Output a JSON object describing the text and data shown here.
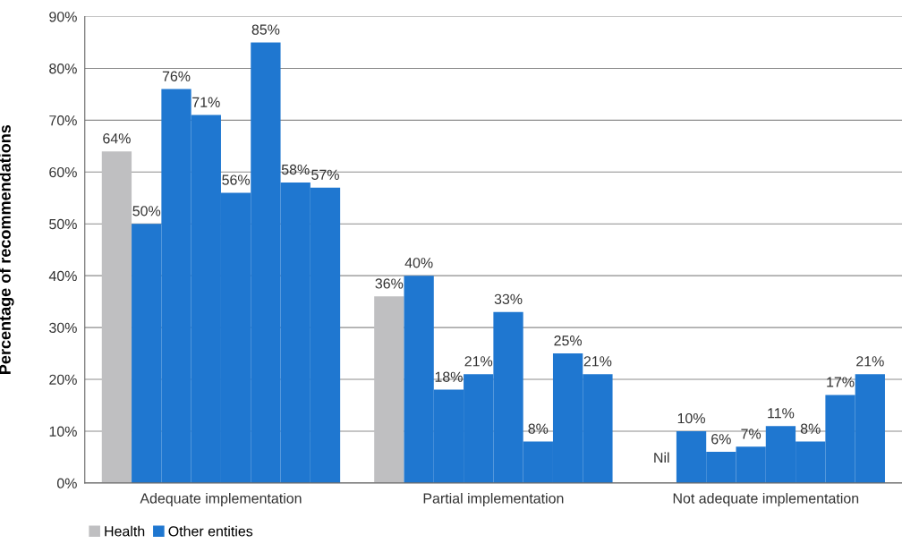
{
  "chart_data": {
    "type": "bar",
    "ylabel": "Percentage of recommendations",
    "categories": [
      "Adequate implementation",
      "Partial implementation",
      "Not adequate implementation"
    ],
    "series": [
      {
        "name": "Health",
        "color": "#bfbfc1",
        "values": [
          64,
          36,
          null
        ],
        "value_labels": [
          "64%",
          "36%",
          null
        ]
      },
      {
        "name": "Other entities",
        "color": "#1f77d0",
        "values": [
          50,
          40,
          10
        ],
        "value_labels": [
          "50%",
          "40%",
          "10%"
        ]
      },
      {
        "color": "#1f77d0",
        "values": [
          76,
          18,
          6
        ],
        "value_labels": [
          "76%",
          "18%",
          "6%"
        ]
      },
      {
        "color": "#1f77d0",
        "values": [
          71,
          21,
          7
        ],
        "value_labels": [
          "71%",
          "21%",
          "7%"
        ]
      },
      {
        "color": "#1f77d0",
        "values": [
          56,
          33,
          11
        ],
        "value_labels": [
          "56%",
          "33%",
          "11%"
        ]
      },
      {
        "color": "#1f77d0",
        "values": [
          85,
          8,
          8
        ],
        "value_labels": [
          "85%",
          "8%",
          "8%"
        ]
      },
      {
        "color": "#1f77d0",
        "values": [
          58,
          25,
          17
        ],
        "value_labels": [
          "58%",
          "25%",
          "17%"
        ]
      },
      {
        "color": "#1f77d0",
        "values": [
          57,
          21,
          21
        ],
        "value_labels": [
          "57%",
          "21%",
          "21%"
        ]
      }
    ],
    "ylim": [
      0,
      90
    ],
    "yticks": [
      {
        "value": 0,
        "label": "0%"
      },
      {
        "value": 10,
        "label": "10%"
      },
      {
        "value": 20,
        "label": "20%"
      },
      {
        "value": 30,
        "label": "30%"
      },
      {
        "value": 40,
        "label": "40%"
      },
      {
        "value": 50,
        "label": "50%"
      },
      {
        "value": 60,
        "label": "60%"
      },
      {
        "value": 70,
        "label": "70%"
      },
      {
        "value": 80,
        "label": "80%"
      },
      {
        "value": 90,
        "label": "90%"
      }
    ],
    "annotations": [
      "Nil"
    ],
    "grid": "y",
    "legend": "bottom left"
  }
}
